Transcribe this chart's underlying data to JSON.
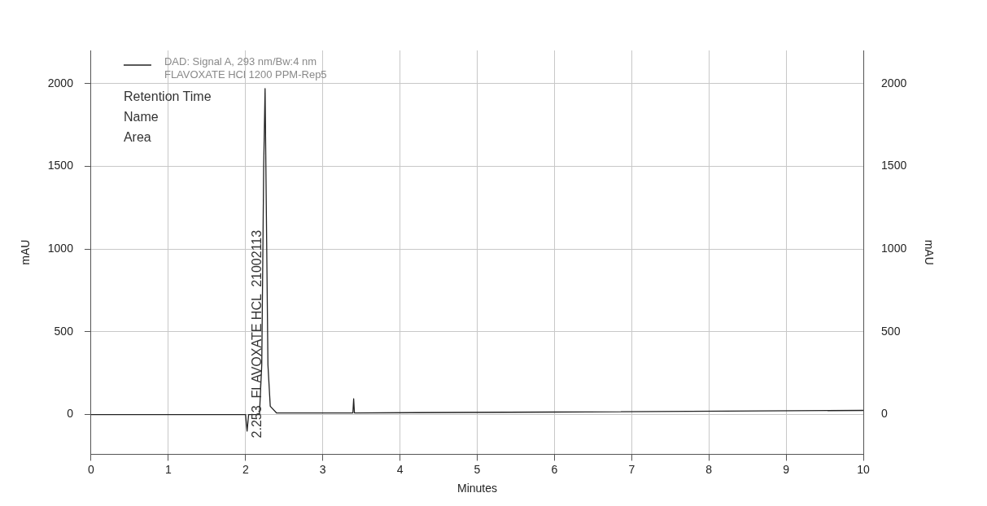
{
  "chart_data": {
    "type": "line",
    "xlabel": "Minutes",
    "ylabel": "mAU",
    "y2label": "mAU",
    "x": [
      0,
      1,
      2.0,
      2.02,
      2.04,
      2.18,
      2.21,
      2.235,
      2.253,
      2.27,
      2.29,
      2.32,
      2.4,
      3.39,
      3.4,
      3.41,
      6,
      10
    ],
    "series": [
      {
        "name": "DAD: Signal A, 293 nm/Bw:4 nm\nFLAVOXATE HCl 1200 PPM-Rep5",
        "color": "#222222",
        "values": [
          0,
          0,
          0,
          -100,
          0,
          0,
          300,
          1500,
          1970,
          1200,
          300,
          50,
          10,
          10,
          95,
          10,
          15,
          25
        ]
      }
    ],
    "xlim": [
      0,
      10
    ],
    "xticks": [
      0,
      1,
      2,
      3,
      4,
      5,
      6,
      7,
      8,
      9,
      10
    ],
    "ylim": [
      -240,
      2200
    ],
    "yticks": [
      0,
      500,
      1000,
      1500,
      2000
    ],
    "y2lim": [
      -240,
      2200
    ],
    "y2ticks": [
      0,
      500,
      1000,
      1500,
      2000
    ],
    "annotations": [
      "Retention Time",
      "Name",
      "Area",
      "2.253  FLAVOXATE HCL  21002113"
    ],
    "grid": true,
    "legend": "top left",
    "marker": "none",
    "line_style": "solid"
  }
}
